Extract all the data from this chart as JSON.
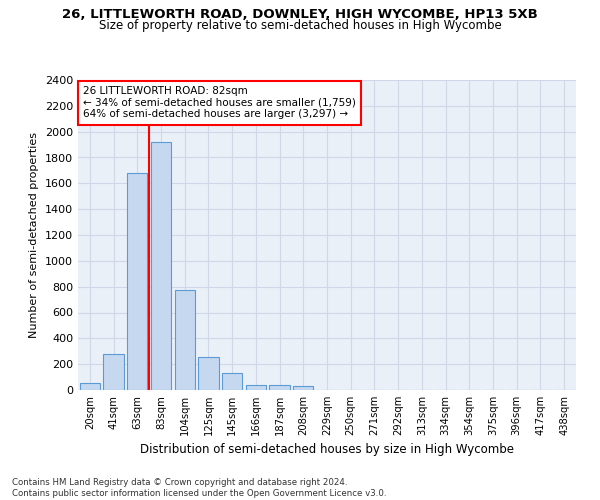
{
  "title_line1": "26, LITTLEWORTH ROAD, DOWNLEY, HIGH WYCOMBE, HP13 5XB",
  "title_line2": "Size of property relative to semi-detached houses in High Wycombe",
  "xlabel": "Distribution of semi-detached houses by size in High Wycombe",
  "ylabel": "Number of semi-detached properties",
  "footnote": "Contains HM Land Registry data © Crown copyright and database right 2024.\nContains public sector information licensed under the Open Government Licence v3.0.",
  "bar_labels": [
    "20sqm",
    "41sqm",
    "63sqm",
    "83sqm",
    "104sqm",
    "125sqm",
    "145sqm",
    "166sqm",
    "187sqm",
    "208sqm",
    "229sqm",
    "250sqm",
    "271sqm",
    "292sqm",
    "313sqm",
    "334sqm",
    "354sqm",
    "375sqm",
    "396sqm",
    "417sqm",
    "438sqm"
  ],
  "bar_values": [
    55,
    280,
    1680,
    1920,
    775,
    255,
    130,
    38,
    35,
    30,
    0,
    0,
    0,
    0,
    0,
    0,
    0,
    0,
    0,
    0,
    0
  ],
  "bar_color": "#c5d8f0",
  "bar_edge_color": "#5b9bd5",
  "property_line_x": 2.5,
  "annotation_box_text": "26 LITTLEWORTH ROAD: 82sqm\n← 34% of semi-detached houses are smaller (1,759)\n64% of semi-detached houses are larger (3,297) →",
  "annotation_box_color": "red",
  "ylim": [
    0,
    2400
  ],
  "yticks": [
    0,
    200,
    400,
    600,
    800,
    1000,
    1200,
    1400,
    1600,
    1800,
    2000,
    2200,
    2400
  ],
  "grid_color": "#d0d8e8",
  "bg_color": "#eaf0f8"
}
